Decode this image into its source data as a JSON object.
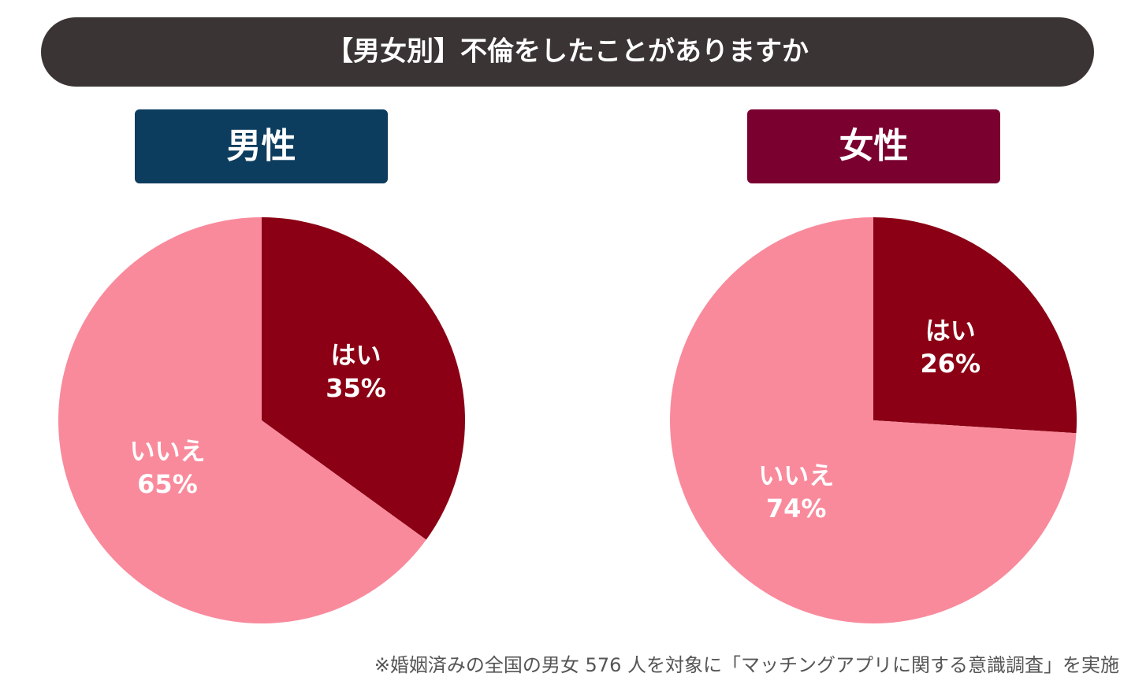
{
  "title": "【男女別】不倫をしたことがありますか",
  "chart_data": [
    {
      "type": "pie",
      "title": "男性",
      "title_color": "#0d3d5e",
      "categories": [
        "はい",
        "いいえ"
      ],
      "values": [
        35,
        65
      ],
      "value_labels": [
        "35%",
        "65%"
      ],
      "colors": [
        "#8b0014",
        "#f98a9c"
      ]
    },
    {
      "type": "pie",
      "title": "女性",
      "title_color": "#7a0030",
      "categories": [
        "はい",
        "いいえ"
      ],
      "values": [
        26,
        74
      ],
      "value_labels": [
        "26%",
        "74%"
      ],
      "colors": [
        "#8b0014",
        "#f98a9c"
      ]
    }
  ],
  "note": "※婚姻済みの全国の男女 576 人を対象に「マッチングアプリに関する意識調査」を実施"
}
